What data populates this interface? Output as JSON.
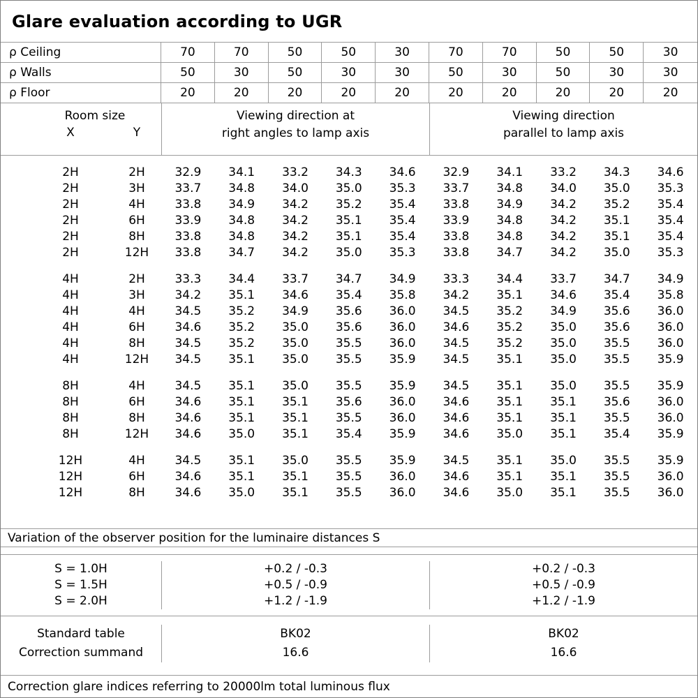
{
  "title": "Glare evaluation according to UGR",
  "colors": {
    "grid_line": "#9b9b9b",
    "text": "#000000",
    "background": "#ffffff"
  },
  "header": {
    "rho_rows": [
      {
        "label": "ρ Ceiling",
        "values": [
          "70",
          "70",
          "50",
          "50",
          "30",
          "70",
          "70",
          "50",
          "50",
          "30"
        ]
      },
      {
        "label": "ρ Walls",
        "values": [
          "50",
          "30",
          "50",
          "30",
          "30",
          "50",
          "30",
          "50",
          "30",
          "30"
        ]
      },
      {
        "label": "ρ Floor",
        "values": [
          "20",
          "20",
          "20",
          "20",
          "20",
          "20",
          "20",
          "20",
          "20",
          "20"
        ]
      }
    ],
    "room_size_label": "Room size",
    "x_label": "X",
    "y_label": "Y",
    "group1_line1": "Viewing direction at",
    "group1_line2": "right angles to lamp axis",
    "group2_line1": "Viewing direction",
    "group2_line2": "parallel to lamp axis"
  },
  "table": {
    "groups": [
      {
        "rows": [
          {
            "x": "2H",
            "y": "2H",
            "values": [
              "32.9",
              "34.1",
              "33.2",
              "34.3",
              "34.6",
              "32.9",
              "34.1",
              "33.2",
              "34.3",
              "34.6"
            ]
          },
          {
            "x": "2H",
            "y": "3H",
            "values": [
              "33.7",
              "34.8",
              "34.0",
              "35.0",
              "35.3",
              "33.7",
              "34.8",
              "34.0",
              "35.0",
              "35.3"
            ]
          },
          {
            "x": "2H",
            "y": "4H",
            "values": [
              "33.8",
              "34.9",
              "34.2",
              "35.2",
              "35.4",
              "33.8",
              "34.9",
              "34.2",
              "35.2",
              "35.4"
            ]
          },
          {
            "x": "2H",
            "y": "6H",
            "values": [
              "33.9",
              "34.8",
              "34.2",
              "35.1",
              "35.4",
              "33.9",
              "34.8",
              "34.2",
              "35.1",
              "35.4"
            ]
          },
          {
            "x": "2H",
            "y": "8H",
            "values": [
              "33.8",
              "34.8",
              "34.2",
              "35.1",
              "35.4",
              "33.8",
              "34.8",
              "34.2",
              "35.1",
              "35.4"
            ]
          },
          {
            "x": "2H",
            "y": "12H",
            "values": [
              "33.8",
              "34.7",
              "34.2",
              "35.0",
              "35.3",
              "33.8",
              "34.7",
              "34.2",
              "35.0",
              "35.3"
            ]
          }
        ]
      },
      {
        "rows": [
          {
            "x": "4H",
            "y": "2H",
            "values": [
              "33.3",
              "34.4",
              "33.7",
              "34.7",
              "34.9",
              "33.3",
              "34.4",
              "33.7",
              "34.7",
              "34.9"
            ]
          },
          {
            "x": "4H",
            "y": "3H",
            "values": [
              "34.2",
              "35.1",
              "34.6",
              "35.4",
              "35.8",
              "34.2",
              "35.1",
              "34.6",
              "35.4",
              "35.8"
            ]
          },
          {
            "x": "4H",
            "y": "4H",
            "values": [
              "34.5",
              "35.2",
              "34.9",
              "35.6",
              "36.0",
              "34.5",
              "35.2",
              "34.9",
              "35.6",
              "36.0"
            ]
          },
          {
            "x": "4H",
            "y": "6H",
            "values": [
              "34.6",
              "35.2",
              "35.0",
              "35.6",
              "36.0",
              "34.6",
              "35.2",
              "35.0",
              "35.6",
              "36.0"
            ]
          },
          {
            "x": "4H",
            "y": "8H",
            "values": [
              "34.5",
              "35.2",
              "35.0",
              "35.5",
              "36.0",
              "34.5",
              "35.2",
              "35.0",
              "35.5",
              "36.0"
            ]
          },
          {
            "x": "4H",
            "y": "12H",
            "values": [
              "34.5",
              "35.1",
              "35.0",
              "35.5",
              "35.9",
              "34.5",
              "35.1",
              "35.0",
              "35.5",
              "35.9"
            ]
          }
        ]
      },
      {
        "rows": [
          {
            "x": "8H",
            "y": "4H",
            "values": [
              "34.5",
              "35.1",
              "35.0",
              "35.5",
              "35.9",
              "34.5",
              "35.1",
              "35.0",
              "35.5",
              "35.9"
            ]
          },
          {
            "x": "8H",
            "y": "6H",
            "values": [
              "34.6",
              "35.1",
              "35.1",
              "35.6",
              "36.0",
              "34.6",
              "35.1",
              "35.1",
              "35.6",
              "36.0"
            ]
          },
          {
            "x": "8H",
            "y": "8H",
            "values": [
              "34.6",
              "35.1",
              "35.1",
              "35.5",
              "36.0",
              "34.6",
              "35.1",
              "35.1",
              "35.5",
              "36.0"
            ]
          },
          {
            "x": "8H",
            "y": "12H",
            "values": [
              "34.6",
              "35.0",
              "35.1",
              "35.4",
              "35.9",
              "34.6",
              "35.0",
              "35.1",
              "35.4",
              "35.9"
            ]
          }
        ]
      },
      {
        "rows": [
          {
            "x": "12H",
            "y": "4H",
            "values": [
              "34.5",
              "35.1",
              "35.0",
              "35.5",
              "35.9",
              "34.5",
              "35.1",
              "35.0",
              "35.5",
              "35.9"
            ]
          },
          {
            "x": "12H",
            "y": "6H",
            "values": [
              "34.6",
              "35.1",
              "35.1",
              "35.5",
              "36.0",
              "34.6",
              "35.1",
              "35.1",
              "35.5",
              "36.0"
            ]
          },
          {
            "x": "12H",
            "y": "8H",
            "values": [
              "34.6",
              "35.0",
              "35.1",
              "35.5",
              "36.0",
              "34.6",
              "35.0",
              "35.1",
              "35.5",
              "36.0"
            ]
          }
        ]
      }
    ]
  },
  "variation_note": "Variation of the observer position for the luminaire distances S",
  "s_block": {
    "rows": [
      {
        "label": "S = 1.0H",
        "value": "+0.2 / -0.3"
      },
      {
        "label": "S = 1.5H",
        "value": "+0.5 / -0.9"
      },
      {
        "label": "S = 2.0H",
        "value": "+1.2 / -1.9"
      }
    ]
  },
  "standard_block": {
    "rows": [
      {
        "label": "Standard table",
        "value": "BK02"
      },
      {
        "label": "Correction summand",
        "value": "16.6"
      }
    ]
  },
  "footer_note": "Correction glare indices referring to 20000lm total luminous flux"
}
